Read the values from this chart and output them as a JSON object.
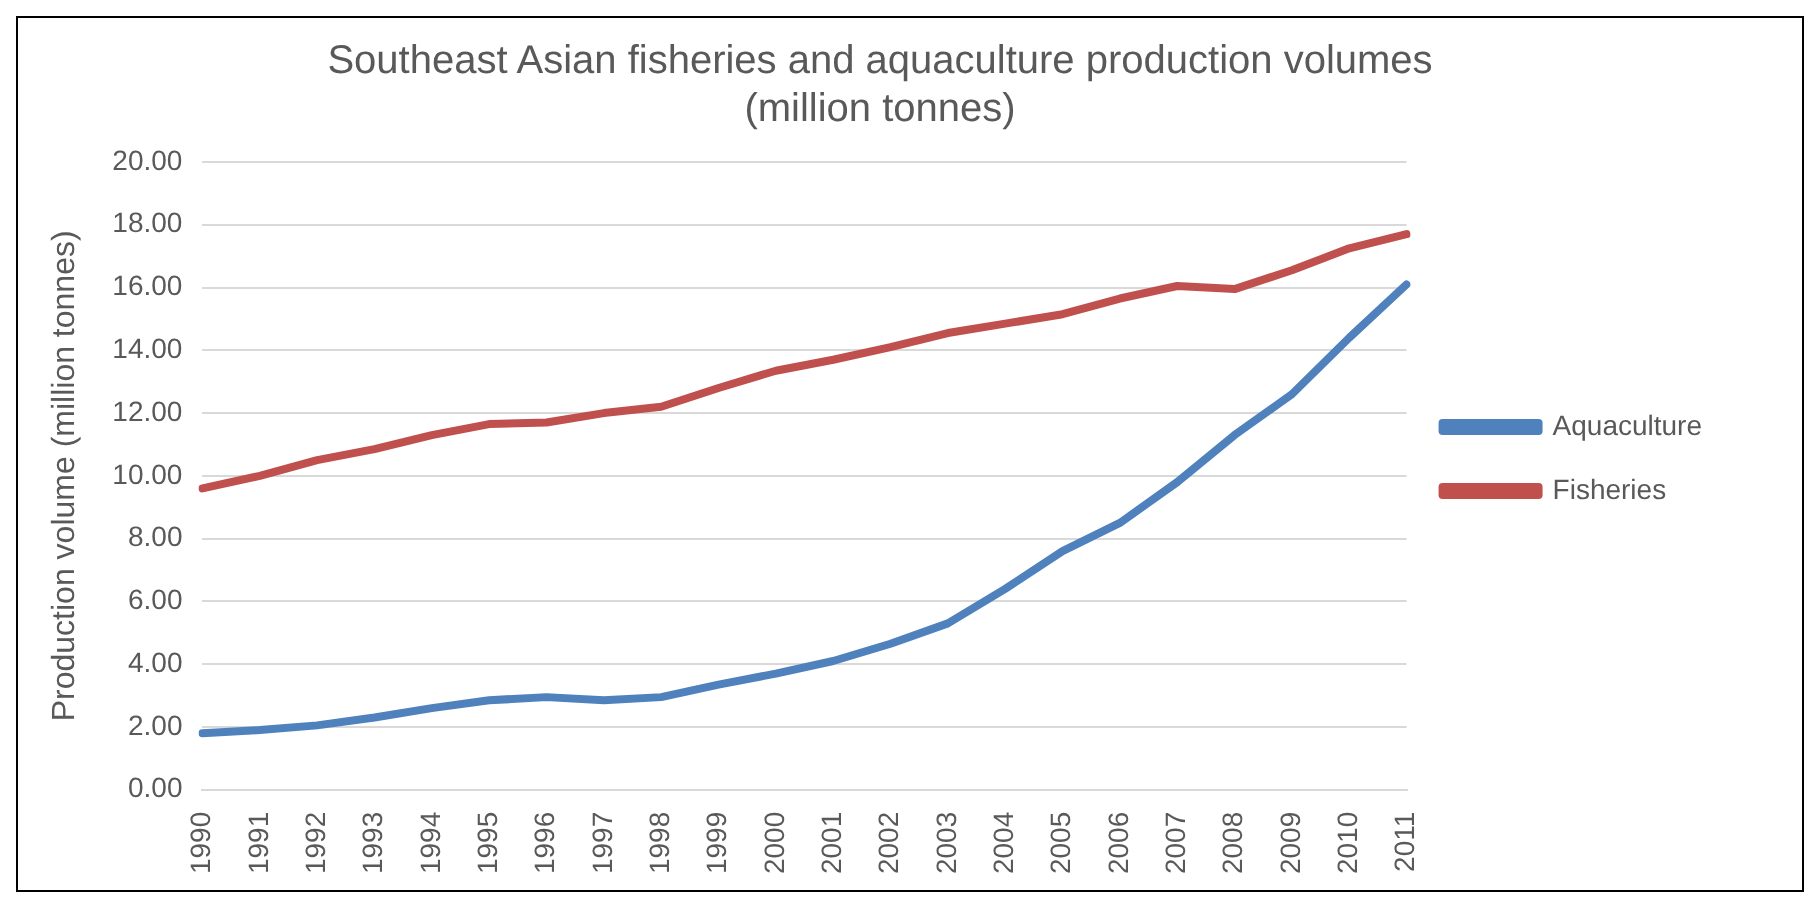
{
  "chart_data": {
    "type": "line",
    "title": "Southeast Asian fisheries and aquaculture production volumes\n(million tonnes)",
    "ylabel": "Production volume (million tonnes)",
    "categories": [
      "1990",
      "1991",
      "1992",
      "1993",
      "1994",
      "1995",
      "1996",
      "1997",
      "1998",
      "1999",
      "2000",
      "2001",
      "2002",
      "2003",
      "2004",
      "2005",
      "2006",
      "2007",
      "2008",
      "2009",
      "2010",
      "2011"
    ],
    "series": [
      {
        "name": "Aquaculture",
        "color": "#4f81bd",
        "values": [
          1.8,
          1.9,
          2.05,
          2.3,
          2.6,
          2.85,
          2.95,
          2.85,
          2.95,
          3.35,
          3.7,
          4.1,
          4.65,
          5.3,
          6.4,
          7.6,
          8.5,
          9.8,
          11.3,
          12.6,
          14.4,
          16.1
        ]
      },
      {
        "name": "Fisheries",
        "color": "#c0504d",
        "values": [
          9.6,
          10.0,
          10.5,
          10.85,
          11.3,
          11.65,
          11.7,
          12.0,
          12.2,
          12.8,
          13.35,
          13.7,
          14.1,
          14.55,
          14.85,
          15.15,
          15.65,
          16.05,
          15.95,
          16.55,
          17.25,
          17.7
        ]
      }
    ],
    "ylim": [
      0,
      20
    ],
    "yticks": [
      {
        "value": 0,
        "label": "0.00"
      },
      {
        "value": 2,
        "label": "2.00"
      },
      {
        "value": 4,
        "label": "4.00"
      },
      {
        "value": 6,
        "label": "6.00"
      },
      {
        "value": 8,
        "label": "8.00"
      },
      {
        "value": 10,
        "label": "10.00"
      },
      {
        "value": 12,
        "label": "12.00"
      },
      {
        "value": 14,
        "label": "14.00"
      },
      {
        "value": 16,
        "label": "16.00"
      },
      {
        "value": 18,
        "label": "18.00"
      },
      {
        "value": 20,
        "label": "20.00"
      }
    ],
    "grid": "y",
    "legend": "right",
    "marker": "none",
    "line_style": "solid"
  }
}
